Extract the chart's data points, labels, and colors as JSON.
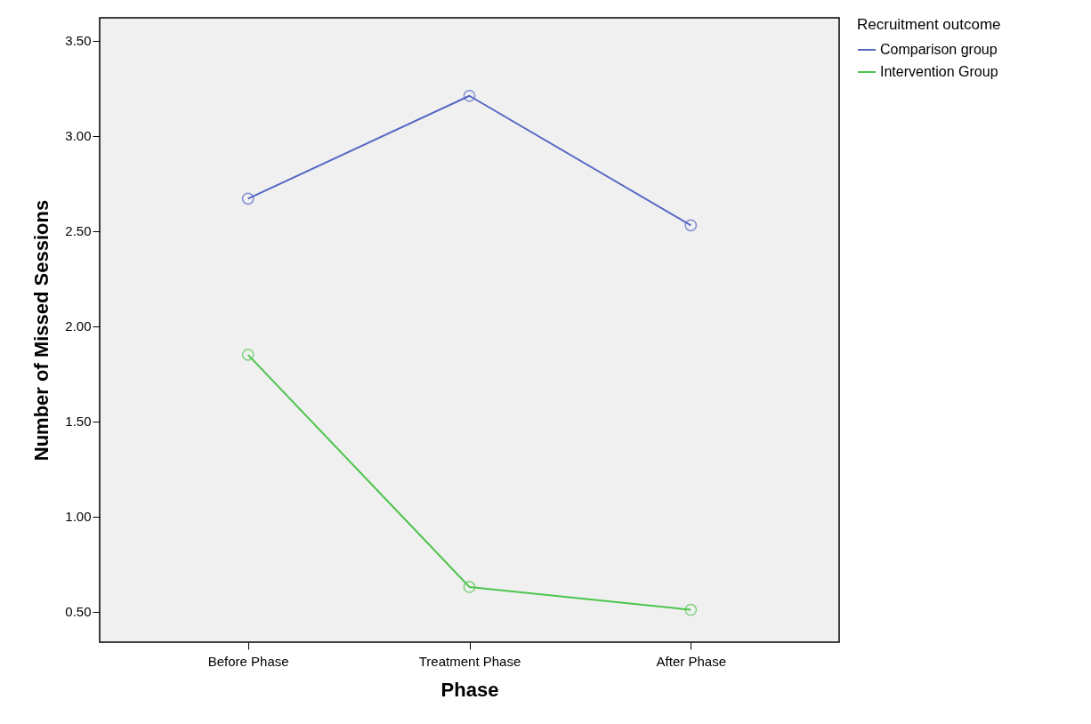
{
  "chart_data": {
    "type": "line",
    "xlabel": "Phase",
    "ylabel": "Number of Missed Sessions",
    "legend_title": "Recruitment outcome",
    "categories": [
      "Before Phase",
      "Treatment Phase",
      "After Phase"
    ],
    "series": [
      {
        "name": "Comparison group",
        "color": "#5566c4",
        "values": [
          2.67,
          3.21,
          2.53
        ]
      },
      {
        "name": "Intervention Group",
        "color": "#4cc44c",
        "values": [
          1.85,
          0.63,
          0.51
        ]
      }
    ],
    "ylim": [
      0.34,
      3.62
    ],
    "yticks": [
      {
        "value": 0.5,
        "label": "0.50"
      },
      {
        "value": 1,
        "label": "1.00"
      },
      {
        "value": 1.5,
        "label": "1.50"
      },
      {
        "value": 2,
        "label": "2.00"
      },
      {
        "value": 2.5,
        "label": "2.50"
      },
      {
        "value": 3,
        "label": "3.00"
      },
      {
        "value": 3.5,
        "label": "3.50"
      }
    ],
    "grid": false,
    "legend": "top right",
    "marker": "circle",
    "line_style": "solid"
  }
}
